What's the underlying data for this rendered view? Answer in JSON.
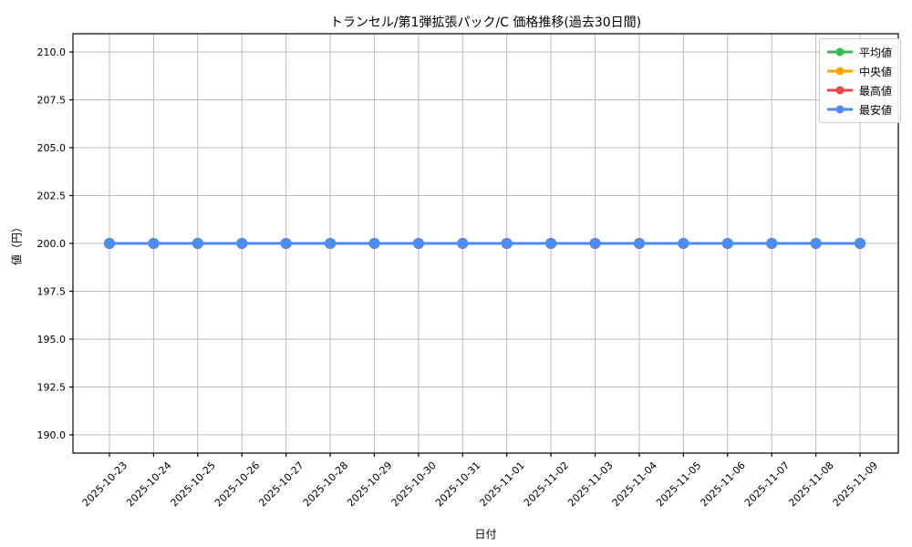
{
  "chart_data": {
    "type": "line",
    "title": "トランセル/第1弾拡張パック/C 価格推移(過去30日間)",
    "xlabel": "日付",
    "ylabel": "値（円）",
    "x": [
      "2025-10-23",
      "2025-10-24",
      "2025-10-25",
      "2025-10-26",
      "2025-10-27",
      "2025-10-28",
      "2025-10-29",
      "2025-10-30",
      "2025-10-31",
      "2025-11-01",
      "2025-11-02",
      "2025-11-03",
      "2025-11-04",
      "2025-11-05",
      "2025-11-06",
      "2025-11-07",
      "2025-11-08",
      "2025-11-09"
    ],
    "yticks": [
      190.0,
      192.5,
      195.0,
      197.5,
      200.0,
      202.5,
      205.0,
      207.5,
      210.0
    ],
    "ylim": [
      189.0,
      211.0
    ],
    "grid": true,
    "legend_position": "upper right",
    "series": [
      {
        "name": "平均値",
        "color": "#2dbe4e",
        "values": [
          200,
          200,
          200,
          200,
          200,
          200,
          200,
          200,
          200,
          200,
          200,
          200,
          200,
          200,
          200,
          200,
          200,
          200
        ]
      },
      {
        "name": "中央値",
        "color": "#ffa502",
        "values": [
          200,
          200,
          200,
          200,
          200,
          200,
          200,
          200,
          200,
          200,
          200,
          200,
          200,
          200,
          200,
          200,
          200,
          200
        ]
      },
      {
        "name": "最高値",
        "color": "#ef4444",
        "values": [
          200,
          200,
          200,
          200,
          200,
          200,
          200,
          200,
          200,
          200,
          200,
          200,
          200,
          200,
          200,
          200,
          200,
          200
        ]
      },
      {
        "name": "最安値",
        "color": "#4a8df7",
        "values": [
          200,
          200,
          200,
          200,
          200,
          200,
          200,
          200,
          200,
          200,
          200,
          200,
          200,
          200,
          200,
          200,
          200,
          200
        ]
      }
    ],
    "colors": {
      "grid": "#bbbbbb",
      "axis": "#000000",
      "tick_text": "#000000",
      "background": "#ffffff"
    }
  }
}
